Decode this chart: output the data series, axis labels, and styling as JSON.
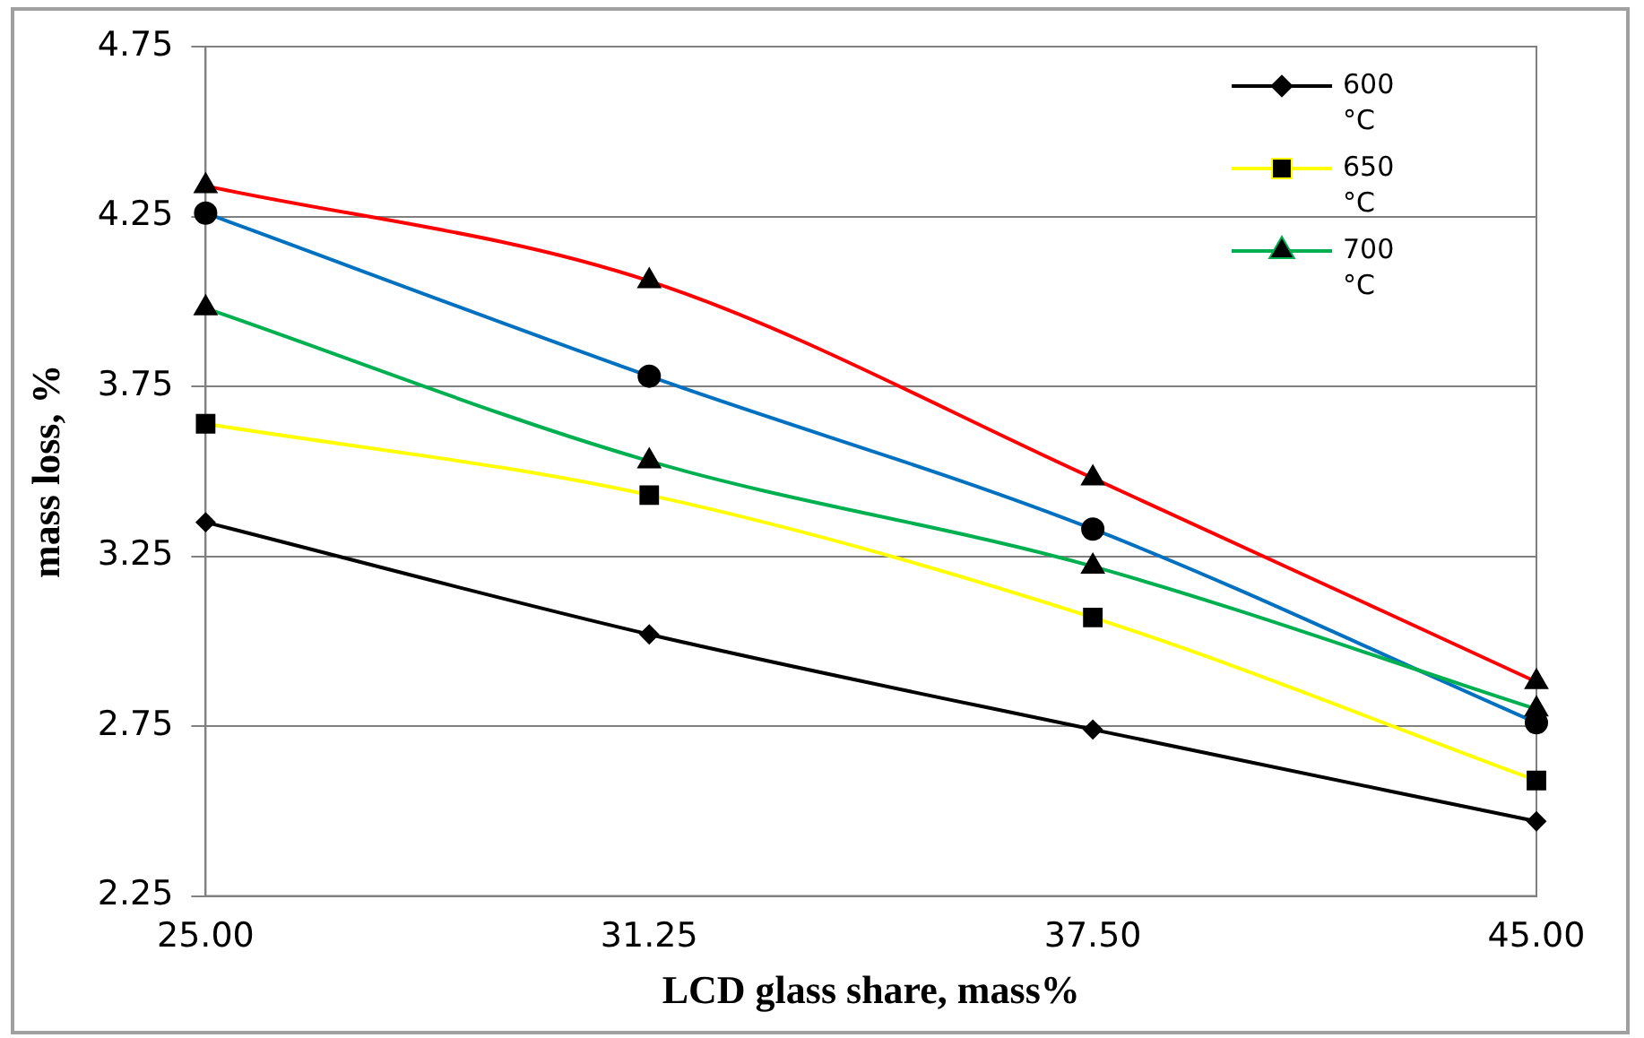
{
  "chart_data": {
    "type": "line",
    "xlabel": "LCD glass share, mass%",
    "ylabel": "mass loss, %",
    "categories": [
      "25.00",
      "31.25",
      "37.50",
      "45.00"
    ],
    "series": [
      {
        "name": "600 °C",
        "color": "#000000",
        "marker": "diamond",
        "values": [
          3.35,
          3.02,
          2.74,
          2.47
        ]
      },
      {
        "name": "650 °C",
        "color": "#ffff00",
        "marker": "square",
        "values": [
          3.64,
          3.43,
          3.07,
          2.59
        ]
      },
      {
        "name": "700 °C",
        "color": "#00b050",
        "marker": "triangle",
        "values": [
          3.98,
          3.53,
          3.22,
          2.8
        ]
      },
      {
        "color": "#0070c0",
        "marker": "circle",
        "values": [
          4.26,
          3.78,
          3.33,
          2.76
        ]
      },
      {
        "color": "#ff0000",
        "marker": "triangle",
        "values": [
          4.34,
          4.06,
          3.48,
          2.88
        ]
      }
    ],
    "ylim": [
      2.25,
      4.75
    ],
    "yticks": [
      {
        "value": 2.25,
        "label": "2.25"
      },
      {
        "value": 2.75,
        "label": "2.75"
      },
      {
        "value": 3.25,
        "label": "3.25"
      },
      {
        "value": 3.75,
        "label": "3.75"
      },
      {
        "value": 4.25,
        "label": "4.25"
      },
      {
        "value": 4.75,
        "label": "4.75"
      }
    ],
    "grid": "y",
    "legend": "top right"
  }
}
